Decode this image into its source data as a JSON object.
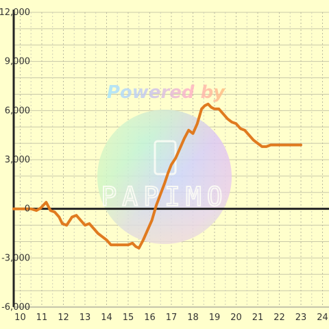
{
  "chart_data": {
    "type": "line",
    "title": "",
    "xlabel": "",
    "ylabel": "",
    "xlim": [
      9.7,
      24.3
    ],
    "ylim": [
      -6000,
      12000
    ],
    "x_ticks": [
      "10",
      "11",
      "12",
      "13",
      "14",
      "15",
      "16",
      "17",
      "18",
      "19",
      "20",
      "21",
      "22",
      "23",
      "24"
    ],
    "y_ticks": [
      "12,000",
      "9,000",
      "6,000",
      "3,000",
      "0",
      "-3,000",
      "-6,000"
    ],
    "grid": true,
    "legend": "none",
    "series": [
      {
        "color": "#e07a1f",
        "x": [
          9.7,
          10.0,
          10.25,
          10.5,
          10.75,
          10.95,
          11.2,
          11.4,
          11.6,
          11.8,
          11.95,
          12.15,
          12.4,
          12.6,
          12.8,
          13.0,
          13.2,
          13.4,
          13.6,
          13.8,
          14.0,
          14.2,
          14.4,
          14.6,
          14.8,
          15.0,
          15.2,
          15.35,
          15.5,
          15.7,
          15.9,
          16.1,
          16.3,
          16.5,
          16.7,
          16.85,
          17.0,
          17.2,
          17.4,
          17.6,
          17.8,
          18.0,
          18.2,
          18.4,
          18.55,
          18.7,
          18.85,
          19.0,
          19.2,
          19.4,
          19.6,
          19.8,
          20.0,
          20.2,
          20.4,
          20.6,
          20.8,
          21.0,
          21.2,
          21.4,
          21.6,
          22.0,
          22.5,
          23.0
        ],
        "y": [
          0,
          0,
          0,
          0,
          -100,
          50,
          400,
          -100,
          -200,
          -500,
          -900,
          -1000,
          -500,
          -400,
          -700,
          -1000,
          -900,
          -1200,
          -1500,
          -1700,
          -1900,
          -2200,
          -2200,
          -2200,
          -2200,
          -2200,
          -2100,
          -2300,
          -2400,
          -1900,
          -1300,
          -700,
          200,
          900,
          1600,
          2200,
          2700,
          3100,
          3700,
          4300,
          4800,
          4600,
          5200,
          6100,
          6300,
          6400,
          6200,
          6100,
          6100,
          5800,
          5500,
          5300,
          5200,
          4900,
          4800,
          4500,
          4200,
          4000,
          3800,
          3800,
          3900,
          3900,
          3900,
          3900
        ]
      }
    ]
  },
  "watermark": {
    "line1": "Powered by",
    "line2": "PAPIMO",
    "colors": [
      "#a6e6ff",
      "#c8f5c8",
      "#ffe6a6",
      "#ffb3d9",
      "#d9b3ff"
    ]
  }
}
